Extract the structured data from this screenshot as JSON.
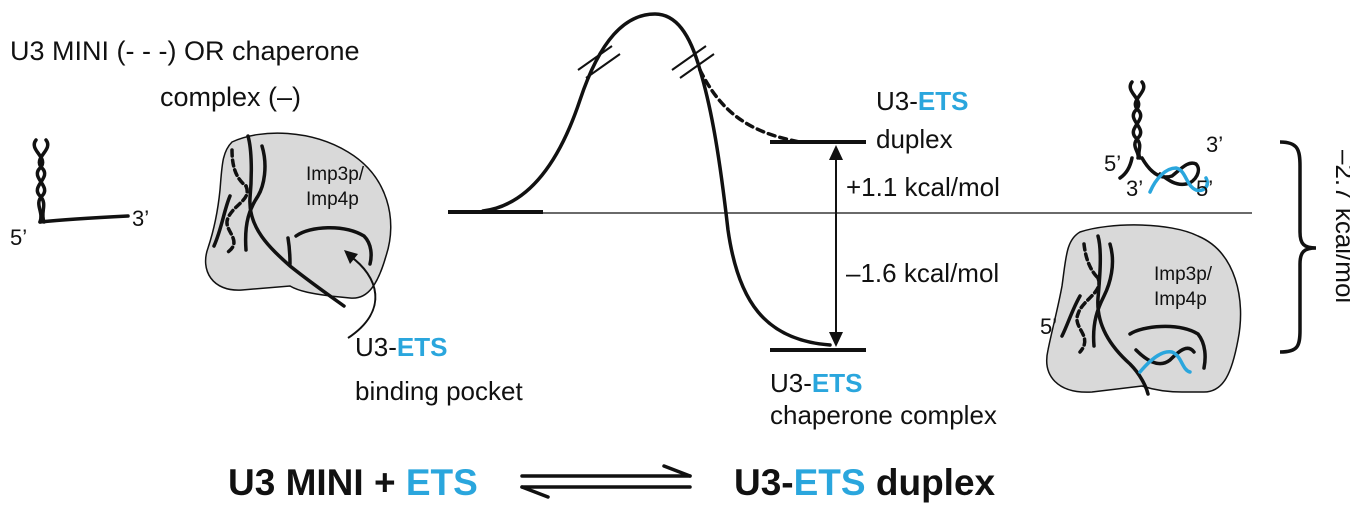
{
  "title": {
    "line1": "U3 MINI (- - -) OR chaperone",
    "line2": "complex (–)"
  },
  "free_rna": {
    "five_prime": "5’",
    "three_prime": "3’"
  },
  "pocket_protein": {
    "line1": "Imp3p/",
    "line2": "Imp4p"
  },
  "binding_pocket": {
    "prefix": "U3-",
    "ets": "ETS",
    "line2": "binding pocket"
  },
  "duplex_state": {
    "prefix": "U3-",
    "ets": "ETS",
    "line2": "duplex"
  },
  "duplex_icon": {
    "five_a": "5’",
    "three_a": "3’",
    "three_b": "3’",
    "five_b": "5’"
  },
  "energies": {
    "duplex": "+1.1 kcal/mol",
    "chaperone": "–1.6 kcal/mol",
    "total": "–2.7 kcal/mol"
  },
  "chaperone_state": {
    "prefix": "U3-",
    "ets": "ETS",
    "line2": "chaperone complex"
  },
  "chaperone_icon": {
    "protein1": "Imp3p/",
    "protein2": "Imp4p",
    "five": "5’"
  },
  "equation": {
    "left_prefix": "U3 MINI + ",
    "left_ets": "ETS",
    "right_prefix": "U3-",
    "right_ets": "ETS",
    "right_suffix": " duplex"
  },
  "colors": {
    "ets_blue": "#2aa6dd",
    "protein_gray": "#d9d9d9",
    "ink": "#111111"
  }
}
